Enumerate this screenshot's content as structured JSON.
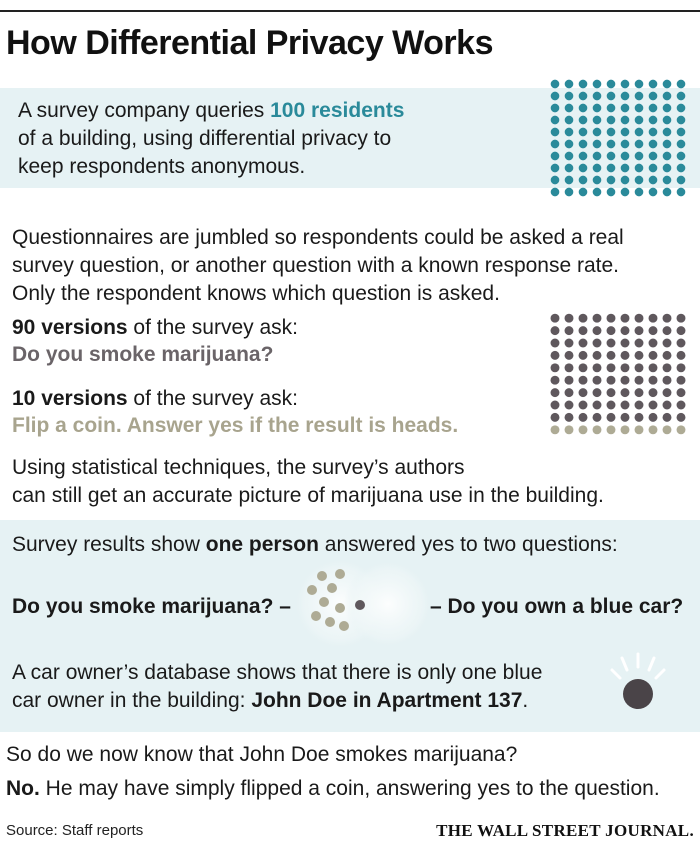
{
  "title": "How Differential Privacy Works",
  "intro": {
    "line1_pre": "A survey company queries ",
    "line1_highlight": "100 residents",
    "line2": "of a building, using differential privacy to",
    "line3": "keep respondents anonymous."
  },
  "jumble": {
    "line1": "Questionnaires are jumbled so respondents could be asked a real",
    "line2": "survey question, or another question with a known response rate.",
    "line3": "Only the respondent knows which question is asked."
  },
  "versions": {
    "a_count": "90 versions",
    "a_suffix": " of the survey ask:",
    "a_question": "Do you smoke marijuana?",
    "b_count": "10 versions",
    "b_suffix": " of the survey ask:",
    "b_question": "Flip a coin. Answer yes if the result is heads."
  },
  "statistical": {
    "line1": "Using statistical techniques, the survey’s authors",
    "line2": "can still get an accurate picture of marijuana use in the  building."
  },
  "results": {
    "line_pre": "Survey results show ",
    "line_highlight": "one person",
    "line_post": " answered yes to two questions:",
    "left_question": "Do you smoke marijuana? –",
    "right_question": "– Do you own a blue car?",
    "db_line1": "A car owner’s database shows that there is only one blue",
    "db_line2_pre": "car owner in the building: ",
    "db_line2_bold": "John Doe in Apartment 137",
    "db_line2_post": "."
  },
  "conclusion": {
    "question": "So do we now know that John Doe smokes marijuana?",
    "answer_bold": "No.",
    "answer_rest": " He may have simply flipped a coin, answering yes to the question."
  },
  "footer": {
    "source": "Source: Staff reports",
    "publisher": "THE WALL STREET JOURNAL."
  },
  "colors": {
    "teal": "#2a8a9a",
    "dark_dot": "#5f585d",
    "sand_dot": "#aeab95",
    "band": "#e6f2f4"
  },
  "dot_grids": {
    "residents": {
      "total": 100,
      "rows": 10,
      "cols": 10
    },
    "versions": {
      "smoke_count": 90,
      "coin_count": 10,
      "rows": 10,
      "cols": 10
    }
  }
}
